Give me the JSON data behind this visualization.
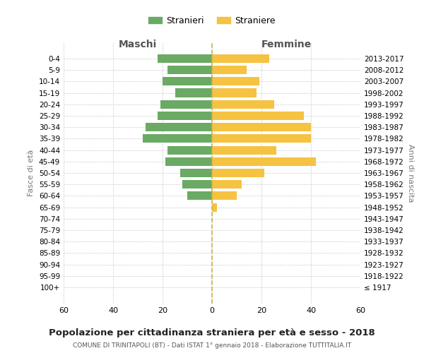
{
  "age_groups": [
    "0-4",
    "5-9",
    "10-14",
    "15-19",
    "20-24",
    "25-29",
    "30-34",
    "35-39",
    "40-44",
    "45-49",
    "50-54",
    "55-59",
    "60-64",
    "65-69",
    "70-74",
    "75-79",
    "80-84",
    "85-89",
    "90-94",
    "95-99",
    "100+"
  ],
  "birth_years": [
    "2013-2017",
    "2008-2012",
    "2003-2007",
    "1998-2002",
    "1993-1997",
    "1988-1992",
    "1983-1987",
    "1978-1982",
    "1973-1977",
    "1968-1972",
    "1963-1967",
    "1958-1962",
    "1953-1957",
    "1948-1952",
    "1943-1947",
    "1938-1942",
    "1933-1937",
    "1928-1932",
    "1923-1927",
    "1918-1922",
    "≤ 1917"
  ],
  "maschi": [
    22,
    18,
    20,
    15,
    21,
    22,
    27,
    28,
    18,
    19,
    13,
    12,
    10,
    0,
    0,
    0,
    0,
    0,
    0,
    0,
    0
  ],
  "femmine": [
    23,
    14,
    19,
    18,
    25,
    37,
    40,
    40,
    26,
    42,
    21,
    12,
    10,
    2,
    0,
    0,
    0,
    0,
    0,
    0,
    0
  ],
  "maschi_color": "#6aaa64",
  "femmine_color": "#f5c242",
  "background_color": "#ffffff",
  "grid_color": "#cccccc",
  "title": "Popolazione per cittadinanza straniera per età e sesso - 2018",
  "subtitle": "COMUNE DI TRINITAPOLI (BT) - Dati ISTAT 1° gennaio 2018 - Elaborazione TUTTITALIA.IT",
  "xlabel_left": "Maschi",
  "xlabel_right": "Femmine",
  "ylabel_left": "Fasce di età",
  "ylabel_right": "Anni di nascita",
  "legend_maschi": "Stranieri",
  "legend_femmine": "Straniere",
  "xlim": 60,
  "dashed_line_color": "#c8b44a"
}
